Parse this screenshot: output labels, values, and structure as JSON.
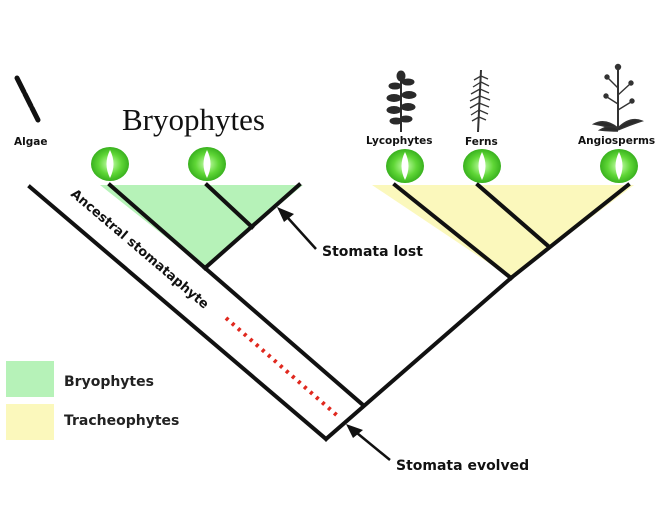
{
  "title": "Bryophytes",
  "taxa": {
    "algae": "Algae",
    "lycophytes": "Lycophytes",
    "ferns": "Ferns",
    "angiosperms": "Angiosperms"
  },
  "annotations": {
    "ancestral": "Ancestral stomataphyte",
    "stomata_lost": "Stomata lost",
    "stomata_evolved": "Stomata evolved"
  },
  "legend": [
    {
      "label": "Bryophytes",
      "color": "#b6f2b8"
    },
    {
      "label": "Tracheophytes",
      "color": "#fbf8bc"
    }
  ],
  "colors": {
    "bryophyte_fill": "#b6f2b8",
    "tracheophyte_fill": "#fbf8bc",
    "stomata_green": "#4dd12a",
    "ancestral_dots": "#e0281e"
  }
}
